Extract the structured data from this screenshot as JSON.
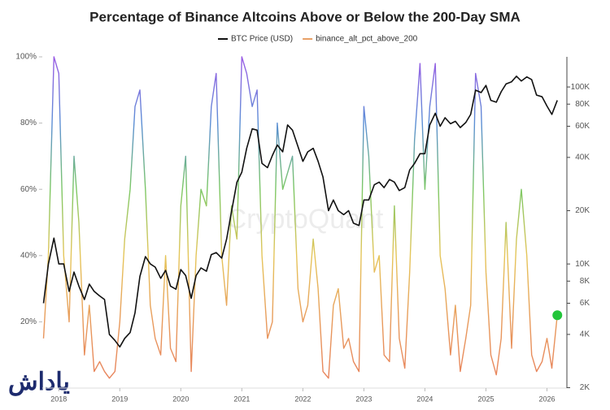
{
  "chart_data": {
    "type": "line",
    "title": "Percentage of Binance Altcoins Above or Below the 200-Day SMA",
    "watermark": "CryptoQuant",
    "logo": "یاداش",
    "legend_position": "top",
    "x": [
      2017.75,
      2017.83,
      2017.92,
      2018.0,
      2018.08,
      2018.17,
      2018.25,
      2018.33,
      2018.42,
      2018.5,
      2018.58,
      2018.67,
      2018.75,
      2018.83,
      2018.92,
      2019.0,
      2019.08,
      2019.17,
      2019.25,
      2019.33,
      2019.42,
      2019.5,
      2019.58,
      2019.67,
      2019.75,
      2019.83,
      2019.92,
      2020.0,
      2020.08,
      2020.17,
      2020.25,
      2020.33,
      2020.42,
      2020.5,
      2020.58,
      2020.67,
      2020.75,
      2020.83,
      2020.92,
      2021.0,
      2021.08,
      2021.17,
      2021.25,
      2021.33,
      2021.42,
      2021.5,
      2021.58,
      2021.67,
      2021.75,
      2021.83,
      2021.92,
      2022.0,
      2022.08,
      2022.17,
      2022.25,
      2022.33,
      2022.42,
      2022.5,
      2022.58,
      2022.67,
      2022.75,
      2022.83,
      2022.92,
      2023.0,
      2023.08,
      2023.17,
      2023.25,
      2023.33,
      2023.42,
      2023.5,
      2023.58,
      2023.67,
      2023.75,
      2023.83,
      2023.92,
      2024.0,
      2024.08,
      2024.17,
      2024.25,
      2024.33,
      2024.42,
      2024.5,
      2024.58,
      2024.67,
      2024.75,
      2024.83,
      2024.92,
      2025.0,
      2025.08,
      2025.17,
      2025.25,
      2025.33,
      2025.42,
      2025.5,
      2025.58,
      2025.67,
      2025.75,
      2025.83,
      2025.92,
      2026.0,
      2026.08,
      2026.17
    ],
    "xlim": [
      2017.73,
      2026.3
    ],
    "xticks": [
      2018,
      2019,
      2020,
      2021,
      2022,
      2023,
      2024,
      2025,
      2026
    ],
    "ylim": [
      0,
      100
    ],
    "yticks": [
      {
        "value": 20,
        "label": "20%"
      },
      {
        "value": 40,
        "label": "40%"
      },
      {
        "value": 60,
        "label": "60%"
      },
      {
        "value": 80,
        "label": "80%"
      },
      {
        "value": 100,
        "label": "100%"
      }
    ],
    "y2lim": [
      1990,
      148000
    ],
    "y2ticks": [
      {
        "value": 2000,
        "label": "2K"
      },
      {
        "value": 4000,
        "label": "4K"
      },
      {
        "value": 6000,
        "label": "6K"
      },
      {
        "value": 8000,
        "label": "8K"
      },
      {
        "value": 10000,
        "label": "10K"
      },
      {
        "value": 20000,
        "label": "20K"
      },
      {
        "value": 40000,
        "label": "40K"
      },
      {
        "value": 60000,
        "label": "60K"
      },
      {
        "value": 80000,
        "label": "80K"
      },
      {
        "value": 100000,
        "label": "100K"
      }
    ],
    "y2log": true,
    "end_marker_color": "#22c53a",
    "series": [
      {
        "name": "BTC Price (USD)",
        "color": "#111111",
        "axis": "y2",
        "values": [
          6000,
          10000,
          14000,
          10000,
          10000,
          7000,
          9000,
          7500,
          6300,
          7700,
          7000,
          6600,
          6300,
          4000,
          3700,
          3400,
          3800,
          4100,
          5300,
          8500,
          11000,
          10000,
          9600,
          8300,
          9200,
          7500,
          7200,
          9300,
          8600,
          6400,
          8600,
          9500,
          9100,
          11300,
          11600,
          10800,
          13800,
          19700,
          29000,
          33000,
          45000,
          58000,
          57000,
          37000,
          35000,
          41000,
          47000,
          43000,
          61000,
          57000,
          46000,
          38000,
          43000,
          45000,
          38000,
          31000,
          20000,
          23000,
          20000,
          19000,
          20000,
          17000,
          16500,
          23000,
          23000,
          28000,
          29000,
          27000,
          30000,
          29000,
          26000,
          27000,
          34000,
          37000,
          42000,
          42000,
          61000,
          71000,
          60000,
          67000,
          62000,
          64000,
          59000,
          63000,
          70000,
          96000,
          93000,
          102000,
          84000,
          82000,
          94000,
          104000,
          107000,
          115000,
          108000,
          114000,
          110000,
          90000,
          88000,
          78000,
          70000,
          84000
        ]
      },
      {
        "name": "binance_alt_pct_above_200",
        "color": "#e8a066",
        "color_scale": [
          "#e8805c",
          "#e89a5c",
          "#e6c65a",
          "#7cc865",
          "#5c8fd6",
          "#9b5de5"
        ],
        "values": [
          15,
          40,
          100,
          95,
          40,
          20,
          70,
          50,
          10,
          25,
          5,
          8,
          5,
          3,
          5,
          20,
          45,
          60,
          85,
          90,
          60,
          25,
          15,
          10,
          40,
          12,
          8,
          55,
          70,
          5,
          40,
          60,
          55,
          85,
          95,
          40,
          25,
          55,
          45,
          100,
          95,
          85,
          90,
          40,
          15,
          20,
          80,
          60,
          65,
          70,
          30,
          20,
          25,
          45,
          30,
          5,
          3,
          25,
          30,
          12,
          15,
          8,
          5,
          85,
          70,
          35,
          40,
          10,
          8,
          55,
          15,
          6,
          35,
          75,
          98,
          60,
          85,
          98,
          40,
          30,
          10,
          25,
          5,
          15,
          25,
          95,
          85,
          35,
          10,
          4,
          15,
          50,
          12,
          45,
          60,
          40,
          10,
          5,
          8,
          15,
          6,
          22
        ]
      }
    ]
  }
}
